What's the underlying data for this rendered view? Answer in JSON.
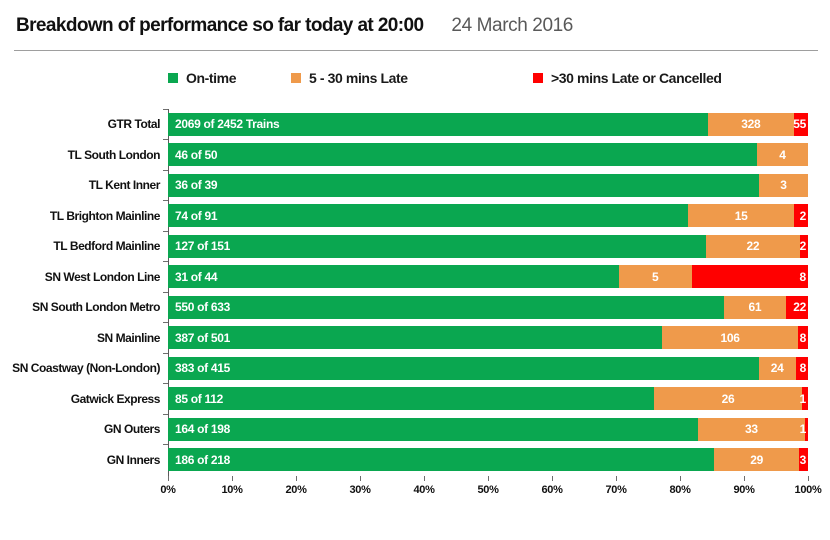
{
  "header": {
    "title": "Breakdown of performance so far today at 20:00",
    "date": "24 March 2016"
  },
  "legend": [
    {
      "name": "on-time",
      "label": "On-time"
    },
    {
      "name": "late",
      "label": "5 - 30 mins Late"
    },
    {
      "name": "cancelled",
      "label": ">30 mins Late or Cancelled"
    }
  ],
  "colors": {
    "on_time": "#0aa750",
    "late": "#ef9a4b",
    "cancelled": "#ff0000",
    "axis": "#5a5a5a",
    "text": "#111111",
    "date_text": "#595959"
  },
  "chart_data": {
    "type": "bar",
    "orientation": "horizontal",
    "stacked": true,
    "percent_of_total": true,
    "title": "Breakdown of performance so far today at 20:00",
    "xlabel": "",
    "ylabel": "",
    "xlim": [
      0,
      100
    ],
    "x_tick_labels": [
      "0%",
      "10%",
      "20%",
      "30%",
      "40%",
      "50%",
      "60%",
      "70%",
      "80%",
      "90%",
      "100%"
    ],
    "grid": false,
    "legend_position": "top",
    "categories": [
      "GTR Total",
      "TL South London",
      "TL Kent Inner",
      "TL Brighton Mainline",
      "TL Bedford Mainline",
      "SN West London Line",
      "SN South London Metro",
      "SN Mainline",
      "SN Coastway (Non-London)",
      "Gatwick Express",
      "GN Outers",
      "GN Inners"
    ],
    "totals": [
      2452,
      50,
      39,
      91,
      151,
      44,
      633,
      501,
      415,
      112,
      198,
      218
    ],
    "series": [
      {
        "name": "On-time",
        "values": [
          2069,
          46,
          36,
          74,
          127,
          31,
          550,
          387,
          383,
          85,
          164,
          186
        ]
      },
      {
        "name": "5 - 30 mins Late",
        "values": [
          328,
          4,
          3,
          15,
          22,
          5,
          61,
          106,
          24,
          26,
          33,
          29
        ]
      },
      {
        "name": ">30 mins Late or Cancelled",
        "values": [
          55,
          0,
          0,
          2,
          2,
          8,
          22,
          8,
          8,
          1,
          1,
          3
        ]
      }
    ],
    "on_time_labels": [
      "2069 of 2452 Trains",
      "46 of 50",
      "36 of 39",
      "74 of 91",
      "127 of 151",
      "31 of 44",
      "550 of 633",
      "387 of 501",
      "383 of 415",
      "85 of 112",
      "164 of 198",
      "186 of 218"
    ]
  }
}
